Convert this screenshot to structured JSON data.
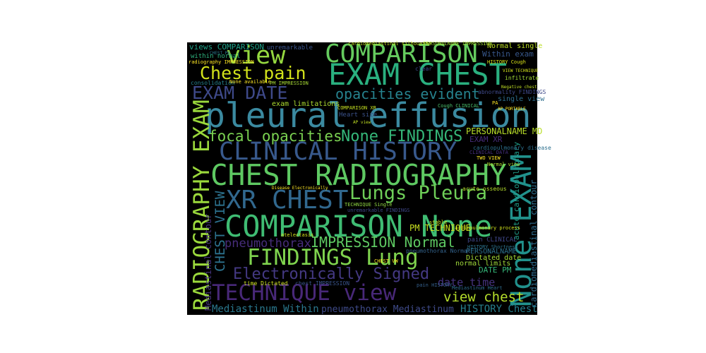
{
  "words": [
    {
      "text": "pleural effusion",
      "color": "#3b8aa0"
    },
    {
      "text": "COMPARISON None",
      "color": "#3fbc73"
    },
    {
      "text": "CHEST RADIOGRAPHY",
      "color": "#5ec962"
    },
    {
      "text": "CLINICAL HISTORY",
      "color": "#38598c"
    },
    {
      "text": "EXAM CHEST",
      "color": "#2ab07f"
    },
    {
      "text": "COMPARISON",
      "color": "#65cb5e"
    },
    {
      "text": "view",
      "color": "#95d840"
    },
    {
      "text": "Chest pain",
      "color": "#d2e21b"
    },
    {
      "text": "EXAM DATE",
      "color": "#3e4989"
    },
    {
      "text": "opacities evident",
      "color": "#26828e"
    },
    {
      "text": "focal opacities",
      "color": "#7ad151"
    },
    {
      "text": "None FINDINGS",
      "color": "#35b779"
    },
    {
      "text": "XR CHEST",
      "color": "#31688e"
    },
    {
      "text": "Lungs Pleura",
      "color": "#6ece58"
    },
    {
      "text": "RADIOGRAPHY EXAM",
      "color": "#9bd93c"
    },
    {
      "text": "None EXAM",
      "color": "#21918c"
    },
    {
      "text": "FINDINGS Lung",
      "color": "#7fd34e"
    },
    {
      "text": "IMPRESSION Normal",
      "color": "#5ec962"
    },
    {
      "text": "pneumothorax",
      "color": "#472d7b"
    },
    {
      "text": "Electronically Signed",
      "color": "#443983"
    },
    {
      "text": "TECHNIQUE view",
      "color": "#482878"
    },
    {
      "text": "date time",
      "color": "#46337e"
    },
    {
      "text": "view chest",
      "color": "#b5de2b"
    },
    {
      "text": "HISTORY Chest",
      "color": "#277f8e"
    },
    {
      "text": "Mediastinum Within",
      "color": "#2a788e"
    },
    {
      "text": "pneumothorax Mediastinum",
      "color": "#3e4a89"
    },
    {
      "text": "CHEST VIEW",
      "color": "#2c728e"
    },
    {
      "text": "Mediastinal contour",
      "color": "#46337e"
    },
    {
      "text": "cardiomediastinal contour",
      "color": "#2f6c8e"
    },
    {
      "text": "acute cardiopulmonary",
      "color": "#1f9e89"
    },
    {
      "text": "PM TECHNIQUE",
      "color": "#c8e020"
    },
    {
      "text": "PERSONALNAME MD",
      "color": "#b8de29"
    },
    {
      "text": "views COMPARISON",
      "color": "#1fa088"
    },
    {
      "text": "unremarkable",
      "color": "#3a548c"
    },
    {
      "text": "cardiomediastinal silhouette",
      "color": "#c2df23"
    },
    {
      "text": "PERSONALNAME IMPRESSION",
      "color": "#a2da37"
    },
    {
      "text": "Normal single",
      "color": "#bddf26"
    },
    {
      "text": "Within exam",
      "color": "#38588c"
    },
    {
      "text": "within normal",
      "color": "#2db27d"
    },
    {
      "text": "radiography IMPRESSION",
      "color": "#fde725"
    },
    {
      "text": "HISTORY Cough",
      "color": "#d8e219"
    },
    {
      "text": "consolidation",
      "color": "#26828e"
    },
    {
      "text": "None available",
      "color": "#fde725"
    },
    {
      "text": "PM IMPRESSION",
      "color": "#a8db34"
    },
    {
      "text": "abnormality FINDINGS",
      "color": "#3e4989"
    },
    {
      "text": "single view",
      "color": "#2e6e8e"
    },
    {
      "text": "exam limitations",
      "color": "#addc30"
    },
    {
      "text": "Heart size",
      "color": "#3b528b"
    },
    {
      "text": "Cough CLINICAL",
      "color": "#4ac16d"
    },
    {
      "text": "EXAM XR",
      "color": "#472c7a"
    },
    {
      "text": "cardiopulmonary disease",
      "color": "#2d708e"
    },
    {
      "text": "CLINICAL DATA",
      "color": "#46307e"
    },
    {
      "text": "TWO VIEW",
      "color": "#fde725"
    },
    {
      "text": "Normal view",
      "color": "#b0dd2f"
    },
    {
      "text": "unremarkable FINDINGS",
      "color": "#3f4788"
    },
    {
      "text": "TECHNIQUE Single",
      "color": "#90d743"
    },
    {
      "text": "acute osseous",
      "color": "#b5de2b"
    },
    {
      "text": "stable",
      "color": "#cae11f"
    },
    {
      "text": "cardiopulmonary process",
      "color": "#d0e11c"
    },
    {
      "text": "pain CLINICAL",
      "color": "#3f4889"
    },
    {
      "text": "HISTORY Shortness",
      "color": "#2c738e"
    },
    {
      "text": "PERSONALNAME",
      "color": "#2d718e"
    },
    {
      "text": "pneumothorax Normal",
      "color": "#33638d"
    },
    {
      "text": "Dictated date",
      "color": "#a5db36"
    },
    {
      "text": "normal limits",
      "color": "#9fda3a"
    },
    {
      "text": "DATE PM",
      "color": "#35b779"
    },
    {
      "text": "time Dictated",
      "color": "#cde11d"
    },
    {
      "text": "chest IMPRESSION",
      "color": "#3a548c"
    },
    {
      "text": "pain HISTORY",
      "color": "#35608d"
    },
    {
      "text": "Mediastinum Heart",
      "color": "#2e6d8e"
    },
    {
      "text": "CHEST VW",
      "color": "#fde725"
    },
    {
      "text": "atelectasis",
      "color": "#d5e21a"
    },
    {
      "text": "Disease Electronically",
      "color": "#fde725"
    },
    {
      "text": "clear",
      "color": "#3e4a89"
    },
    {
      "text": "infiltrate",
      "color": "#a2da37"
    },
    {
      "text": "Negative chest",
      "color": "#c0df25"
    },
    {
      "text": "COMPARISON XR",
      "color": "#c5e021"
    },
    {
      "text": "PA",
      "color": "#fde725"
    },
    {
      "text": "AP PORTABLE",
      "color": "#fde725"
    },
    {
      "text": "VIEW TECHNIQUE",
      "color": "#d2e21b"
    },
    {
      "text": "AP view",
      "color": "#c2df23"
    },
    {
      "text": "CHEST PA",
      "color": "#2a788e"
    }
  ]
}
